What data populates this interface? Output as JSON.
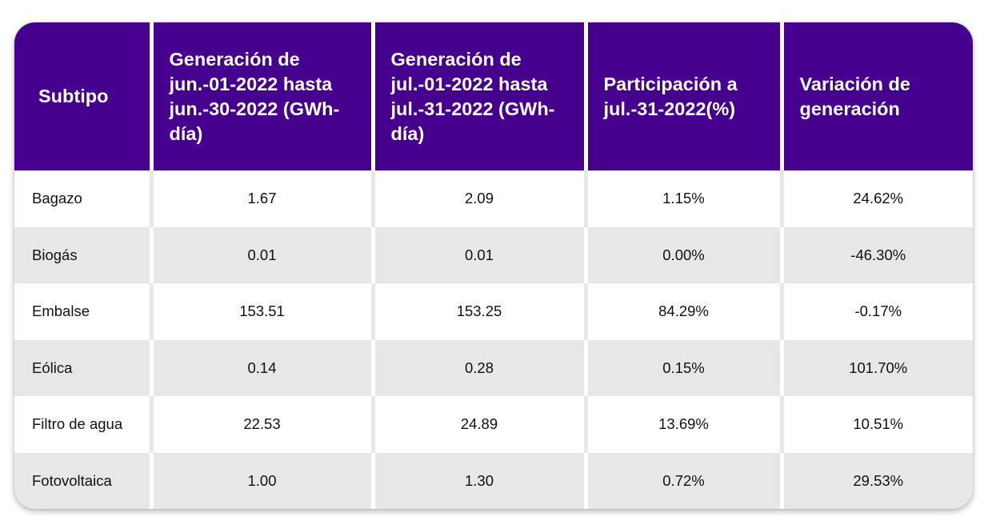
{
  "table": {
    "headers": [
      "Subtipo",
      "Generación de jun.-01-2022 hasta jun.-30-2022 (GWh-día)",
      "Generación de jul.-01-2022 hasta jul.-31-2022 (GWh-día)",
      "Participación a jul.-31-2022(%)",
      "Variación de generación"
    ],
    "rows": [
      [
        "Bagazo",
        "1.67",
        "2.09",
        "1.15%",
        "24.62%"
      ],
      [
        "Biogás",
        "0.01",
        "0.01",
        "0.00%",
        "-46.30%"
      ],
      [
        "Embalse",
        "153.51",
        "153.25",
        "84.29%",
        "-0.17%"
      ],
      [
        "Eólica",
        "0.14",
        "0.28",
        "0.15%",
        "101.70%"
      ],
      [
        "Filtro de agua",
        "22.53",
        "24.89",
        "13.69%",
        "10.51%"
      ],
      [
        "Fotovoltaica",
        "1.00",
        "1.30",
        "0.72%",
        "29.53%"
      ]
    ]
  },
  "colors": {
    "header_bg": "#46008e",
    "header_text": "#ffffff",
    "stripe": "#e7e7e7"
  }
}
